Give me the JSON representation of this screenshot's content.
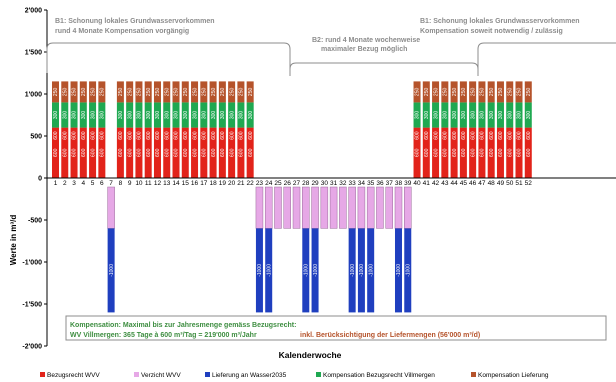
{
  "chart_data": {
    "type": "bar",
    "stacked": true,
    "xlabel": "Kalenderwoche",
    "ylabel": "Werte in m³/d",
    "ylim": [
      -2000,
      2000
    ],
    "yticks": [
      2000,
      1500,
      1000,
      500,
      0,
      -500,
      -1000,
      -1500,
      -2000
    ],
    "ytick_labels": [
      "2'000",
      "1'500",
      "1'000",
      "500",
      "0",
      "-500",
      "-1'000",
      "-1'500",
      "-2'000"
    ],
    "weeks_visible": [
      1,
      2,
      3,
      4,
      5,
      6,
      7,
      8,
      9,
      10,
      11,
      12,
      13,
      14,
      15,
      16,
      17,
      18,
      19,
      20,
      21,
      22,
      23,
      24,
      25,
      26,
      27,
      28,
      29,
      30,
      31,
      32,
      33,
      34,
      35,
      36,
      37,
      38,
      39,
      40,
      41,
      42,
      43,
      44,
      45,
      46,
      47,
      48,
      49,
      50,
      51,
      52
    ],
    "week_labels": [
      "1",
      "2",
      "3",
      "4",
      "5",
      "6",
      "7",
      "8",
      "9",
      "10",
      "11",
      "12",
      "13",
      "14",
      "15",
      "16",
      "17",
      "18",
      "19",
      "20",
      "21",
      "22",
      "23",
      "24",
      "25",
      "26",
      "27",
      "28",
      "29",
      "30",
      "31",
      "32",
      "33",
      "34",
      "35",
      "36",
      "37",
      "38",
      "39",
      "40",
      "41",
      "42",
      "43",
      "44",
      "45",
      "46",
      "47",
      "48",
      "49",
      "50",
      "51",
      "52"
    ],
    "series": [
      {
        "name": "Bezugsrecht WVV",
        "color": "#e2231a",
        "value": 600,
        "weeks": [
          1,
          2,
          3,
          4,
          5,
          6,
          8,
          9,
          10,
          11,
          12,
          13,
          14,
          15,
          16,
          17,
          18,
          19,
          20,
          21,
          22,
          40,
          41,
          42,
          43,
          44,
          45,
          46,
          47,
          48,
          49,
          50,
          51,
          52
        ]
      },
      {
        "name": "Verzicht WVV",
        "color": "#e6a8e6",
        "value": -600,
        "weeks": [
          7,
          23,
          24,
          25,
          26,
          27,
          28,
          29,
          30,
          31,
          32,
          33,
          34,
          35,
          36,
          37,
          38,
          39
        ]
      },
      {
        "name": "Lieferung an Wasser2035",
        "color": "#1f3fbf",
        "value": -1000,
        "weeks": [
          7,
          23,
          24,
          28,
          29,
          33,
          34,
          35,
          38,
          39
        ]
      },
      {
        "name": "Kompensation Bezugsrecht Villmergen",
        "color": "#1fa851",
        "value": 300,
        "weeks": [
          1,
          2,
          3,
          4,
          5,
          6,
          8,
          9,
          10,
          11,
          12,
          13,
          14,
          15,
          16,
          17,
          18,
          19,
          20,
          21,
          22,
          40,
          41,
          42,
          43,
          44,
          45,
          46,
          47,
          48,
          49,
          50,
          51,
          52
        ]
      },
      {
        "name": "Kompensation Lieferung",
        "color": "#b5532b",
        "value": 250,
        "weeks": [
          1,
          2,
          3,
          4,
          5,
          6,
          8,
          9,
          10,
          11,
          12,
          13,
          14,
          15,
          16,
          17,
          18,
          19,
          20,
          21,
          22,
          40,
          41,
          42,
          43,
          44,
          45,
          46,
          47,
          48,
          49,
          50,
          51,
          52
        ]
      }
    ],
    "bar_value_labels": {
      "Bezugsrecht WVV": "600",
      "Kompensation Bezugsrecht Villmergen": "300",
      "Kompensation Lieferung": "250",
      "Lieferung an Wasser2035": "-1000"
    },
    "legend_position": "bottom",
    "grid": false,
    "annotations": {
      "b1_left": [
        "B1: Schonung lokales Grundwasservorkommen",
        "rund 4 Monate Kompensation vorgängig"
      ],
      "b2_mid": [
        "B2: rund 4 Monate wochenweise",
        "maximaler Bezug möglich"
      ],
      "b1_right": [
        "B1: Schonung lokales Grundwasservorkommen",
        "Kompensation soweit notwendig / zulässig"
      ],
      "box_line1": "Kompensation: Maximal bis zur Jahresmenge gemäss Bezugsrecht:",
      "box_line2_a": "WV Villmergen:  365 Tage à 600 m³/Tag = 219'000 m³/Jahr",
      "box_line2_b": "inkl. Berücksichtigung der Liefermengen (56'000 m³/d)"
    },
    "colors": {
      "annotation": "#8c8c8c",
      "box_label": "#3e8e41",
      "box_text_b": "#b5532b",
      "axis": "#000000"
    }
  }
}
